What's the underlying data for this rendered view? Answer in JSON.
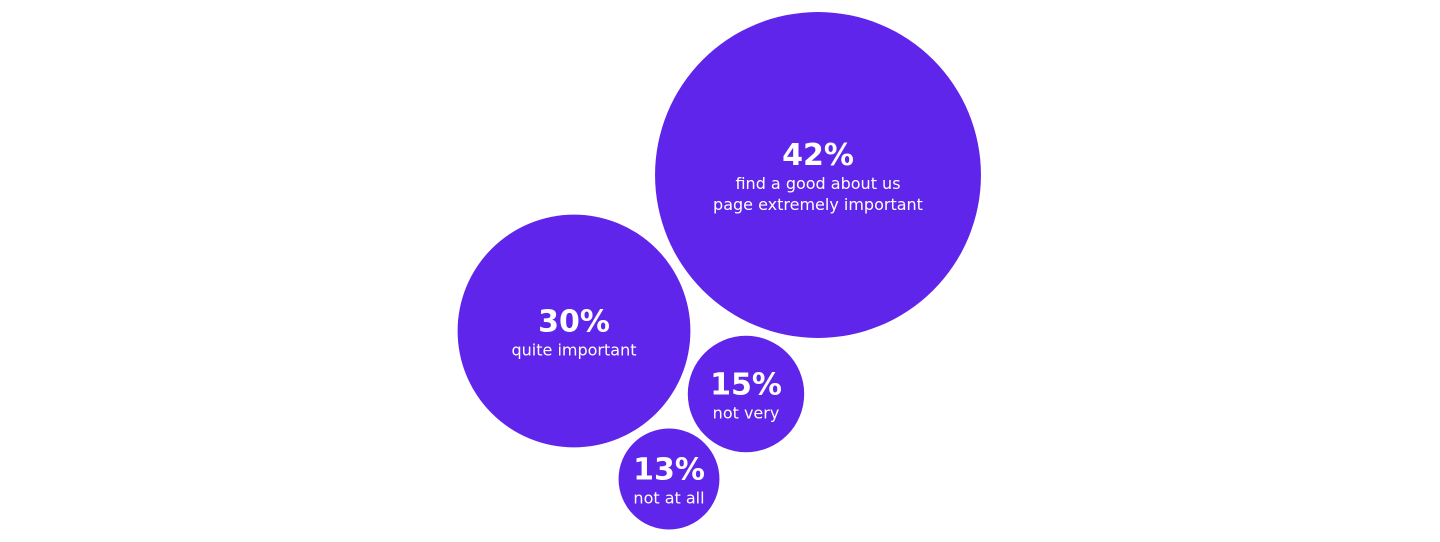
{
  "chart_data": {
    "type": "bubble",
    "categories": [
      "find a good about us\npage extremely important",
      "quite important",
      "not very",
      "not at all"
    ],
    "values": [
      42,
      30,
      15,
      13
    ],
    "value_labels": [
      "42%",
      "30%",
      "15%",
      "13%"
    ],
    "color": "#6025ea"
  }
}
